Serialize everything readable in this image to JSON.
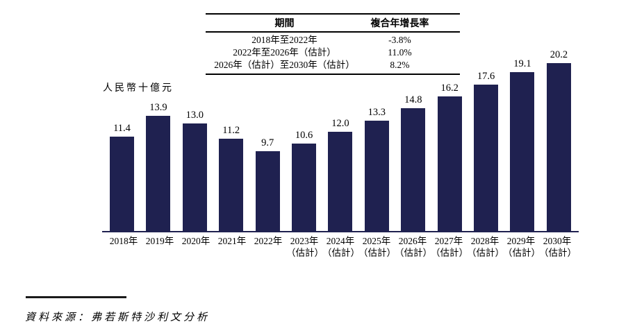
{
  "colors": {
    "bar": "#1f2150",
    "axis": "#1f2150",
    "text": "#000000",
    "rule": "#1a1a1a"
  },
  "cagr_table": {
    "headers": {
      "period": "期間",
      "cagr": "複合年增長率"
    },
    "rows": [
      {
        "period": "2018年至2022年",
        "cagr": "-3.8%"
      },
      {
        "period": "2022年至2026年（估計）",
        "cagr": "11.0%"
      },
      {
        "period": "2026年（估計）至2030年（估計）",
        "cagr": "8.2%"
      }
    ]
  },
  "chart_data": {
    "type": "bar",
    "title": "",
    "unit_label": "人民幣十億元",
    "xlabel": "",
    "ylabel": "人民幣十億元",
    "ylim": [
      0,
      21
    ],
    "gridlines": false,
    "value_labels_visible": true,
    "categories": [
      {
        "year": "2018年",
        "note": ""
      },
      {
        "year": "2019年",
        "note": ""
      },
      {
        "year": "2020年",
        "note": ""
      },
      {
        "year": "2021年",
        "note": ""
      },
      {
        "year": "2022年",
        "note": ""
      },
      {
        "year": "2023年",
        "note": "（估計）"
      },
      {
        "year": "2024年",
        "note": "（估計）"
      },
      {
        "year": "2025年",
        "note": "（估計）"
      },
      {
        "year": "2026年",
        "note": "（估計）"
      },
      {
        "year": "2027年",
        "note": "（估計）"
      },
      {
        "year": "2028年",
        "note": "（估計）"
      },
      {
        "year": "2029年",
        "note": "（估計）"
      },
      {
        "year": "2030年",
        "note": "（估計）"
      }
    ],
    "values": [
      11.4,
      13.9,
      13.0,
      11.2,
      9.7,
      10.6,
      12.0,
      13.3,
      14.8,
      16.2,
      17.6,
      19.1,
      20.2
    ]
  },
  "source_note": "資料來源：弗若斯特沙利文分析"
}
